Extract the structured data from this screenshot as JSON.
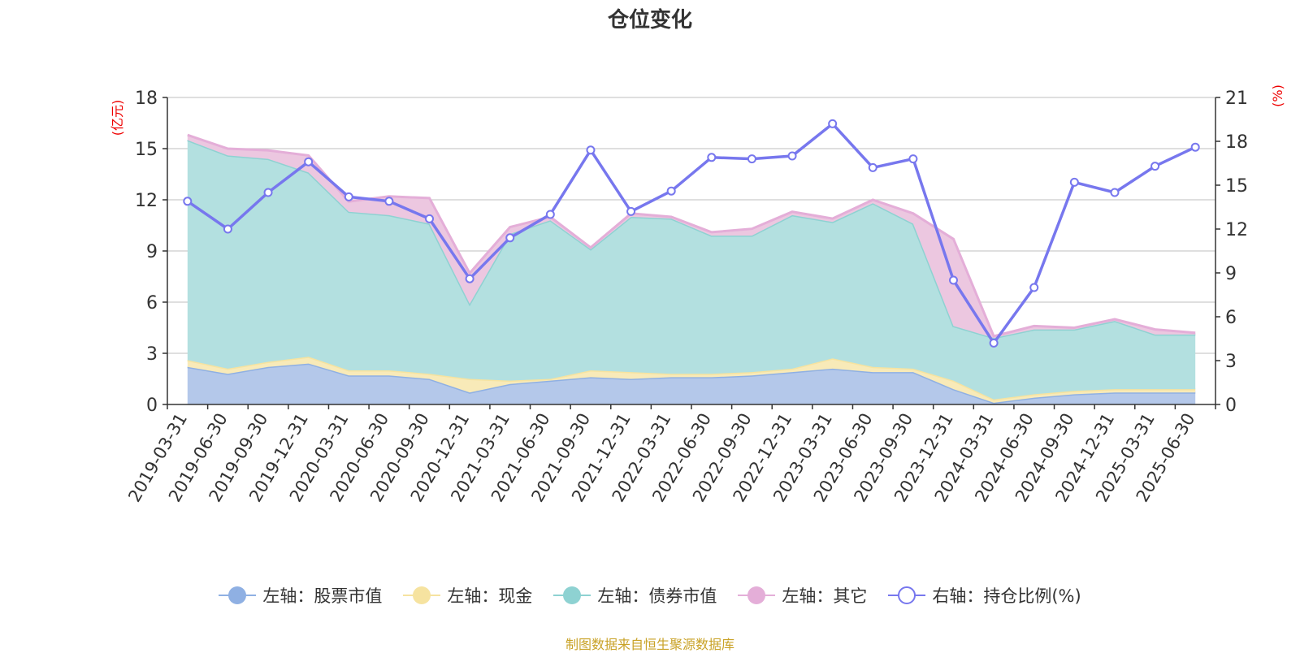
{
  "chart_data": {
    "type": "area",
    "title": "仓位变化",
    "left_unit": "(亿元)",
    "right_unit": "(%)",
    "ylim_left": [
      0,
      18
    ],
    "yticks_left": [
      0,
      3,
      6,
      9,
      12,
      15,
      18
    ],
    "ylim_right": [
      0,
      21
    ],
    "yticks_right": [
      0,
      3,
      6,
      9,
      12,
      15,
      18,
      21
    ],
    "grid": true,
    "legend_position": "bottom",
    "categories": [
      "2019-03-31",
      "2019-06-30",
      "2019-09-30",
      "2019-12-31",
      "2020-03-31",
      "2020-06-30",
      "2020-09-30",
      "2020-12-31",
      "2021-03-31",
      "2021-06-30",
      "2021-09-30",
      "2021-12-31",
      "2022-03-31",
      "2022-06-30",
      "2022-09-30",
      "2022-12-31",
      "2023-03-31",
      "2023-06-30",
      "2023-09-30",
      "2023-12-31",
      "2024-03-31",
      "2024-06-30",
      "2024-09-30",
      "2024-12-31",
      "2025-03-31",
      "2025-06-30"
    ],
    "series": [
      {
        "name": "左轴：股票市值",
        "axis": "left",
        "kind": "stacked-area",
        "color": "#8fb0e3",
        "fill": "#b4c8ea",
        "values": [
          2.2,
          1.8,
          2.2,
          2.4,
          1.7,
          1.7,
          1.5,
          0.7,
          1.2,
          1.4,
          1.6,
          1.5,
          1.6,
          1.6,
          1.7,
          1.9,
          2.1,
          1.9,
          1.9,
          0.9,
          0.1,
          0.4,
          0.6,
          0.7,
          0.7,
          0.7
        ]
      },
      {
        "name": "左轴：现金",
        "axis": "left",
        "kind": "stacked-area",
        "color": "#f6e3a0",
        "fill": "#f8eab8",
        "values": [
          0.4,
          0.3,
          0.3,
          0.4,
          0.3,
          0.3,
          0.3,
          0.8,
          0.2,
          0.1,
          0.4,
          0.4,
          0.2,
          0.2,
          0.2,
          0.2,
          0.6,
          0.3,
          0.2,
          0.5,
          0.2,
          0.2,
          0.2,
          0.2,
          0.2,
          0.2
        ]
      },
      {
        "name": "左轴：债券市值",
        "axis": "left",
        "kind": "stacked-area",
        "color": "#8ed2d2",
        "fill": "#b3e0e0",
        "values": [
          12.9,
          12.5,
          11.9,
          10.8,
          9.3,
          9.1,
          8.8,
          4.4,
          8.6,
          9.3,
          7.1,
          9.1,
          9.1,
          8.1,
          8.0,
          9.0,
          8.0,
          9.6,
          8.5,
          3.2,
          3.6,
          3.8,
          3.6,
          4.0,
          3.2,
          3.2
        ]
      },
      {
        "name": "左轴：其它",
        "axis": "left",
        "kind": "stacked-area",
        "color": "#e4aed8",
        "fill": "#ecc7e0",
        "values": [
          0.3,
          0.4,
          0.5,
          1.0,
          0.6,
          1.1,
          1.5,
          1.8,
          0.4,
          0.2,
          0.1,
          0.2,
          0.1,
          0.2,
          0.4,
          0.2,
          0.2,
          0.2,
          0.6,
          5.1,
          0.1,
          0.2,
          0.1,
          0.1,
          0.3,
          0.1
        ]
      },
      {
        "name": "右轴：持仓比例(%)",
        "axis": "right",
        "kind": "line",
        "color": "#7777ee",
        "values": [
          13.9,
          12.0,
          14.5,
          16.6,
          14.2,
          13.9,
          12.7,
          8.6,
          11.4,
          13.0,
          17.4,
          13.2,
          14.6,
          16.9,
          16.8,
          17.0,
          19.2,
          16.2,
          16.8,
          8.5,
          4.2,
          8.0,
          15.2,
          14.5,
          16.3,
          17.6
        ]
      }
    ]
  },
  "source_note": "制图数据来自恒生聚源数据库"
}
